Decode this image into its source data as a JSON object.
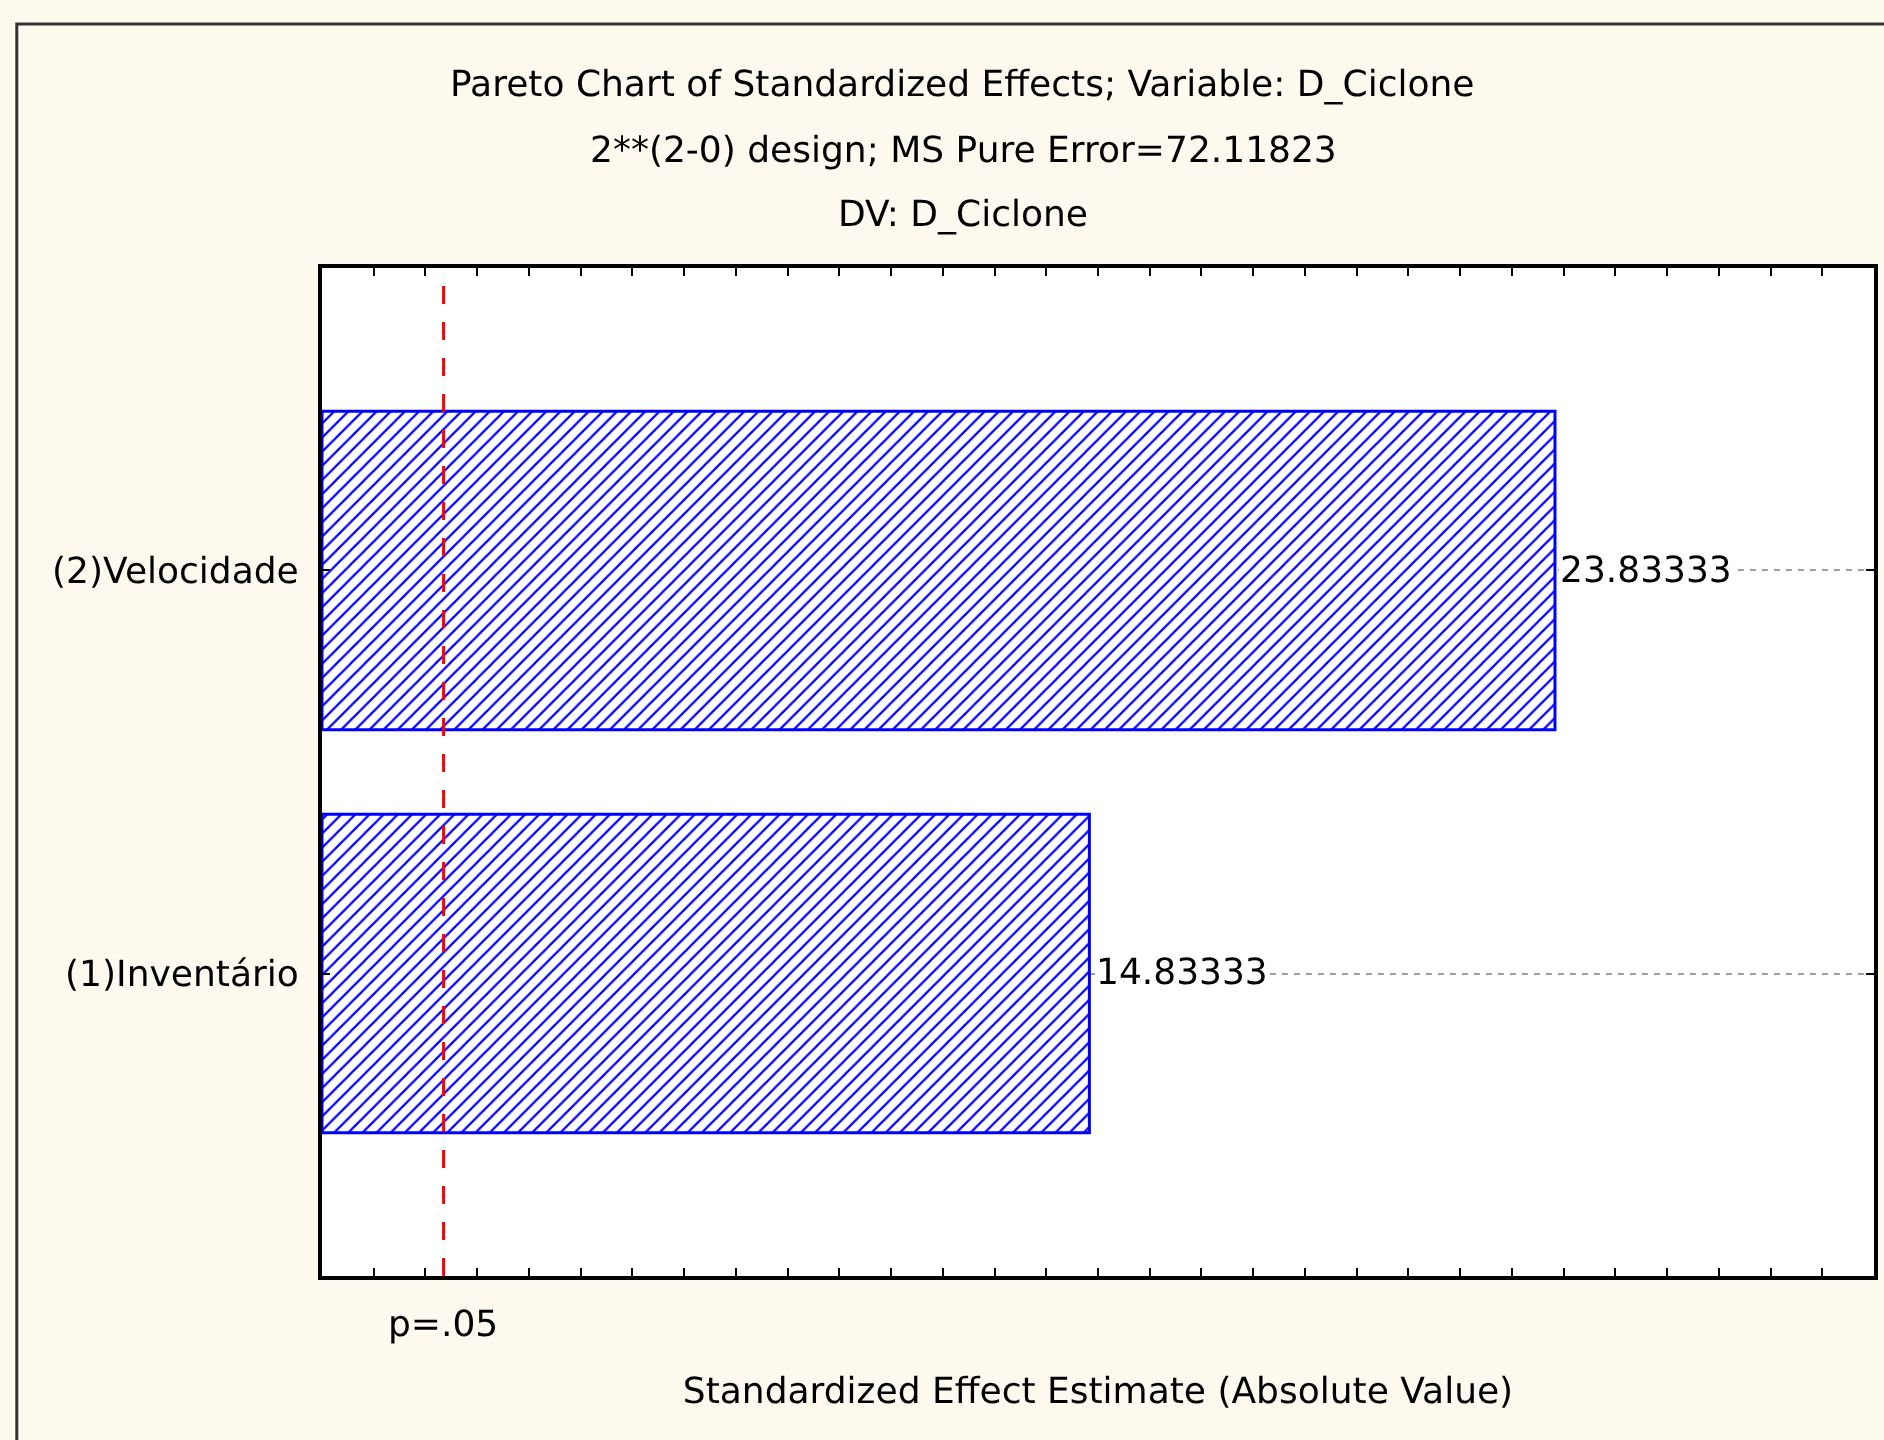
{
  "chart_data": {
    "type": "bar",
    "orientation": "horizontal",
    "title": "Pareto Chart of Standardized Effects; Variable: D_Ciclone",
    "subtitle": "2**(2-0) design; MS Pure Error=72.11823\nDV: D_Ciclone",
    "xlabel": "Standardized Effect Estimate (Absolute Value)",
    "categories": [
      "(2)Velocidade",
      "(1)Inventário"
    ],
    "values": [
      23.83333,
      14.83333
    ],
    "color": "#0000ff",
    "xlim": [
      0,
      30
    ],
    "xticks": [
      {
        "value": 0,
        "label": null
      },
      {
        "value": 1,
        "label": null
      },
      {
        "value": 2,
        "label": null
      },
      {
        "value": 3,
        "label": null
      },
      {
        "value": 4,
        "label": null
      },
      {
        "value": 5,
        "label": null
      },
      {
        "value": 6,
        "label": null
      },
      {
        "value": 7,
        "label": null
      },
      {
        "value": 8,
        "label": null
      },
      {
        "value": 9,
        "label": null
      },
      {
        "value": 10,
        "label": null
      },
      {
        "value": 11,
        "label": null
      },
      {
        "value": 12,
        "label": null
      },
      {
        "value": 13,
        "label": null
      },
      {
        "value": 14,
        "label": null
      },
      {
        "value": 15,
        "label": null
      },
      {
        "value": 16,
        "label": null
      },
      {
        "value": 17,
        "label": null
      },
      {
        "value": 18,
        "label": null
      },
      {
        "value": 19,
        "label": null
      },
      {
        "value": 20,
        "label": null
      },
      {
        "value": 21,
        "label": null
      },
      {
        "value": 22,
        "label": null
      },
      {
        "value": 23,
        "label": null
      },
      {
        "value": 24,
        "label": null
      },
      {
        "value": 25,
        "label": null
      },
      {
        "value": 26,
        "label": null
      },
      {
        "value": 27,
        "label": null
      },
      {
        "value": 28,
        "label": null
      },
      {
        "value": 29,
        "label": null
      },
      {
        "value": 30,
        "label": null
      }
    ],
    "data_labels": true,
    "ref_lines": [
      {
        "axis": "x",
        "value": 2.35,
        "label": "p=.05",
        "color": "#ff0000",
        "line_style": "dashed"
      }
    ],
    "grid": "y",
    "tick_labels": "y"
  }
}
